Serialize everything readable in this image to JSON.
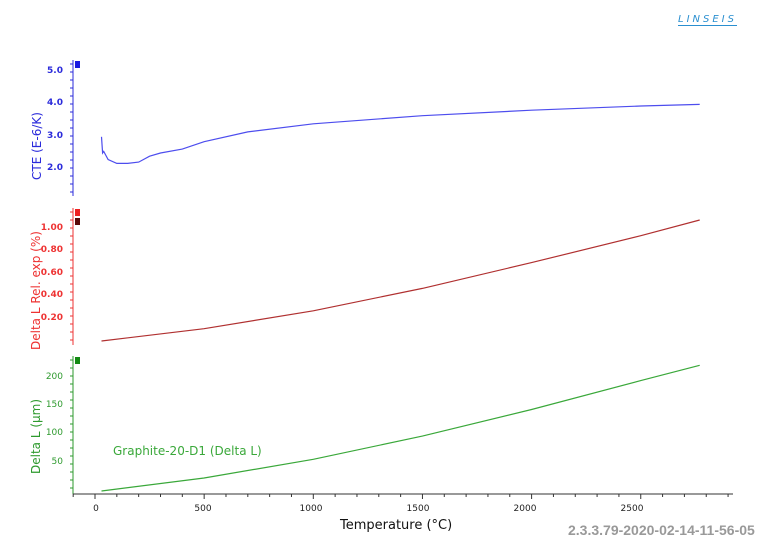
{
  "logo": "LINSEIS",
  "version": "2.3.3.79-2020-02-14-11-56-05",
  "xaxis": {
    "label": "Temperature (°C)",
    "ticks": [
      "0",
      "500",
      "1000",
      "1500",
      "2000",
      "2500"
    ]
  },
  "panels": {
    "cte": {
      "label": "CTE (E-6/K)",
      "color": "#2b2bdb",
      "ticks": [
        "5.0",
        "4.0",
        "3.0",
        "2.0"
      ]
    },
    "rel": {
      "label": "Delta L Rel. exp (%)",
      "color": "#ee3333",
      "ticks": [
        "1.00",
        "0.80",
        "0.60",
        "0.40",
        "0.20"
      ]
    },
    "dl": {
      "label": "Delta L (µm)",
      "color": "#2e9a2e",
      "ticks": [
        "200",
        "150",
        "100",
        "50"
      ]
    }
  },
  "legend": "Graphite-20-D1 (Delta L)",
  "chart_data": [
    {
      "type": "line",
      "title": "CTE",
      "xlabel": "Temperature (°C)",
      "ylabel": "CTE (E-6/K)",
      "ylim": [
        1.0,
        5.3
      ],
      "x": [
        30,
        35,
        40,
        60,
        100,
        150,
        200,
        250,
        300,
        400,
        500,
        700,
        1000,
        1500,
        2000,
        2500,
        2770
      ],
      "values": [
        3.0,
        2.5,
        2.55,
        2.3,
        2.18,
        2.18,
        2.22,
        2.4,
        2.5,
        2.62,
        2.85,
        3.15,
        3.4,
        3.65,
        3.82,
        3.95,
        4.0
      ]
    },
    {
      "type": "line",
      "title": "Delta L Rel. exp",
      "xlabel": "Temperature (°C)",
      "ylabel": "Delta L Rel. exp (%)",
      "ylim": [
        0,
        1.15
      ],
      "x": [
        30,
        500,
        1000,
        1500,
        2000,
        2500,
        2770
      ],
      "values": [
        0.0,
        0.11,
        0.27,
        0.47,
        0.7,
        0.94,
        1.08
      ]
    },
    {
      "type": "line",
      "title": "Delta L",
      "xlabel": "Temperature (°C)",
      "ylabel": "Delta L (µm)",
      "ylim": [
        0,
        235
      ],
      "series_name": "Graphite-20-D1 (Delta L)",
      "x": [
        30,
        500,
        1000,
        1500,
        2000,
        2500,
        2770
      ],
      "values": [
        0,
        23,
        56,
        97,
        144,
        195,
        222
      ]
    }
  ]
}
